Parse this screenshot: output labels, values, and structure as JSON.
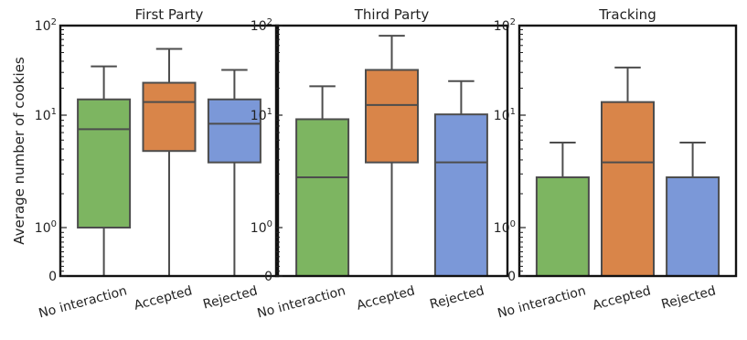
{
  "chart_data": {
    "type": "box",
    "ylabel": "Average number of cookies",
    "yscale": "symlog",
    "ylim": [
      0,
      100
    ],
    "ytick_labels": [
      {
        "value": 0,
        "base": "0",
        "exp": ""
      },
      {
        "value": 1,
        "base": "10",
        "exp": "0"
      },
      {
        "value": 10,
        "base": "10",
        "exp": "1"
      },
      {
        "value": 100,
        "base": "10",
        "exp": "2"
      }
    ],
    "categories": [
      "No interaction",
      "Accepted",
      "Rejected"
    ],
    "colors": [
      "#7db561",
      "#d98549",
      "#7b98d8"
    ],
    "panels": [
      {
        "title": "First Party",
        "boxes": [
          {
            "whislo": 0,
            "q1": 1,
            "med": 7.5,
            "q3": 15,
            "whishi": 35
          },
          {
            "whislo": 0,
            "q1": 4.8,
            "med": 14,
            "q3": 23,
            "whishi": 55
          },
          {
            "whislo": 0,
            "q1": 3.8,
            "med": 8.4,
            "q3": 15,
            "whishi": 32
          }
        ]
      },
      {
        "title": "Third Party",
        "boxes": [
          {
            "whislo": 0,
            "q1": 0,
            "med": 2.8,
            "q3": 9.2,
            "whishi": 21
          },
          {
            "whislo": 0,
            "q1": 3.8,
            "med": 13,
            "q3": 32,
            "whishi": 77
          },
          {
            "whislo": 0,
            "q1": 0,
            "med": 3.8,
            "q3": 10.2,
            "whishi": 24
          }
        ]
      },
      {
        "title": "Tracking",
        "boxes": [
          {
            "whislo": 0,
            "q1": 0,
            "med": 0,
            "q3": 2.8,
            "whishi": 5.7
          },
          {
            "whislo": 0,
            "q1": 0,
            "med": 3.8,
            "q3": 14,
            "whishi": 34
          },
          {
            "whislo": 0,
            "q1": 0,
            "med": 0,
            "q3": 2.8,
            "whishi": 5.7
          }
        ]
      }
    ]
  }
}
